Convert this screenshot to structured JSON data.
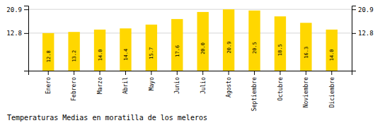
{
  "chart_data": {
    "type": "bar",
    "title": "Temperaturas Medias en moratilla de los meleros",
    "categories": [
      "Enero",
      "Febrero",
      "Marzo",
      "Abril",
      "Mayo",
      "Junio",
      "Julio",
      "Agosto",
      "Septiembre",
      "Octubre",
      "Noviembre",
      "Diciembre"
    ],
    "values": [
      12.8,
      13.2,
      14.0,
      14.4,
      15.7,
      17.6,
      20.0,
      20.9,
      20.5,
      18.5,
      16.3,
      14.0
    ],
    "value_labels": [
      "12.8",
      "13.2",
      "14.0",
      "14.4",
      "15.7",
      "17.6",
      "20.0",
      "20.9",
      "20.5",
      "18.5",
      "16.3",
      "14.0"
    ],
    "color": "#FFD700",
    "ylim": [
      0,
      22.154
    ],
    "yticks": [
      12.8,
      20.9
    ],
    "grid": true,
    "data_labels": true
  }
}
